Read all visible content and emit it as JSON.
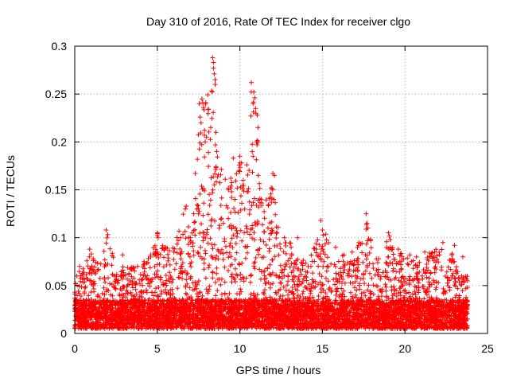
{
  "chart_data": {
    "type": "scatter",
    "title": "Day 310 of 2016, Rate Of TEC Index for receiver clgo",
    "xlabel": "GPS time / hours",
    "ylabel": "ROTI / TECUs",
    "xlim": [
      0,
      25
    ],
    "ylim": [
      0,
      0.3
    ],
    "x_ticks": [
      0,
      5,
      10,
      15,
      20,
      25
    ],
    "x_tick_labels": [
      "0",
      "5",
      "10",
      "15",
      "20",
      "25"
    ],
    "y_ticks": [
      0,
      0.05,
      0.1,
      0.15,
      0.2,
      0.25,
      0.3
    ],
    "y_tick_labels": [
      "0",
      "0.05",
      "0.1",
      "0.15",
      "0.2",
      "0.25",
      "0.3"
    ],
    "grid": true,
    "marker": "+",
    "marker_color": "#ff0000",
    "x_data_range": [
      0,
      23.8
    ],
    "baseline_band": [
      0.005,
      0.035
    ],
    "envelope": [
      [
        0,
        0.06
      ],
      [
        0.5,
        0.07
      ],
      [
        1,
        0.09
      ],
      [
        1.5,
        0.07
      ],
      [
        2,
        0.105
      ],
      [
        2.5,
        0.07
      ],
      [
        3,
        0.07
      ],
      [
        3.5,
        0.07
      ],
      [
        4,
        0.075
      ],
      [
        4.5,
        0.08
      ],
      [
        5,
        0.105
      ],
      [
        5.5,
        0.09
      ],
      [
        6,
        0.09
      ],
      [
        6.5,
        0.13
      ],
      [
        7,
        0.11
      ],
      [
        7.5,
        0.24
      ],
      [
        8,
        0.245
      ],
      [
        8.3,
        0.29
      ],
      [
        8.6,
        0.2
      ],
      [
        9,
        0.16
      ],
      [
        9.5,
        0.17
      ],
      [
        10,
        0.185
      ],
      [
        10.3,
        0.16
      ],
      [
        10.7,
        0.26
      ],
      [
        11,
        0.23
      ],
      [
        11.5,
        0.14
      ],
      [
        12,
        0.165
      ],
      [
        12.5,
        0.09
      ],
      [
        13,
        0.1
      ],
      [
        14,
        0.075
      ],
      [
        15,
        0.12
      ],
      [
        15.5,
        0.09
      ],
      [
        16,
        0.08
      ],
      [
        17,
        0.085
      ],
      [
        17.7,
        0.125
      ],
      [
        18,
        0.09
      ],
      [
        18.5,
        0.07
      ],
      [
        19,
        0.105
      ],
      [
        19.5,
        0.09
      ],
      [
        20,
        0.08
      ],
      [
        20.5,
        0.08
      ],
      [
        21,
        0.08
      ],
      [
        21.5,
        0.085
      ],
      [
        22,
        0.09
      ],
      [
        22.5,
        0.095
      ],
      [
        23,
        0.08
      ],
      [
        23.8,
        0.06
      ]
    ],
    "samples": [
      [
        8.35,
        0.288
      ],
      [
        8.4,
        0.283
      ],
      [
        8.4,
        0.277
      ],
      [
        8.45,
        0.271
      ],
      [
        8.5,
        0.265
      ],
      [
        8.5,
        0.26
      ],
      [
        7.7,
        0.245
      ],
      [
        7.75,
        0.241
      ],
      [
        7.8,
        0.236
      ],
      [
        7.65,
        0.22
      ],
      [
        7.85,
        0.207
      ],
      [
        7.9,
        0.2
      ],
      [
        8.55,
        0.21
      ],
      [
        8.6,
        0.19
      ],
      [
        8.55,
        0.173
      ],
      [
        10.7,
        0.262
      ],
      [
        10.85,
        0.252
      ],
      [
        10.9,
        0.246
      ],
      [
        10.95,
        0.235
      ],
      [
        10.8,
        0.24
      ],
      [
        11.05,
        0.228
      ],
      [
        11.1,
        0.215
      ],
      [
        11.0,
        0.2
      ],
      [
        10.75,
        0.19
      ],
      [
        10.8,
        0.185
      ],
      [
        10.0,
        0.185
      ],
      [
        10.1,
        0.178
      ],
      [
        9.95,
        0.17
      ],
      [
        10.2,
        0.16
      ],
      [
        9.6,
        0.183
      ],
      [
        12.0,
        0.167
      ],
      [
        12.1,
        0.165
      ],
      [
        11.9,
        0.152
      ],
      [
        12.05,
        0.14
      ],
      [
        12.15,
        0.124
      ],
      [
        9.5,
        0.148
      ],
      [
        9.7,
        0.14
      ],
      [
        10.5,
        0.148
      ],
      [
        11.3,
        0.14
      ],
      [
        6.7,
        0.13
      ],
      [
        6.75,
        0.133
      ],
      [
        7.2,
        0.125
      ],
      [
        7.4,
        0.13
      ],
      [
        17.65,
        0.125
      ],
      [
        17.7,
        0.115
      ],
      [
        17.75,
        0.11
      ],
      [
        14.9,
        0.118
      ],
      [
        15.0,
        0.108
      ],
      [
        1.9,
        0.108
      ],
      [
        1.95,
        0.1
      ],
      [
        5.0,
        0.105
      ],
      [
        5.05,
        0.1
      ],
      [
        19.0,
        0.105
      ],
      [
        19.1,
        0.098
      ],
      [
        12.7,
        0.1
      ],
      [
        13.5,
        0.1
      ],
      [
        22.3,
        0.095
      ],
      [
        23.0,
        0.092
      ],
      [
        21.2,
        0.085
      ],
      [
        20.3,
        0.082
      ],
      [
        15.8,
        0.09
      ],
      [
        16.3,
        0.082
      ],
      [
        18.4,
        0.078
      ],
      [
        0.3,
        0.07
      ],
      [
        0.9,
        0.088
      ],
      [
        1.0,
        0.083
      ],
      [
        2.9,
        0.082
      ],
      [
        3.8,
        0.07
      ],
      [
        4.2,
        0.075
      ],
      [
        4.6,
        0.082
      ],
      [
        5.5,
        0.09
      ],
      [
        6.0,
        0.085
      ],
      [
        6.4,
        0.1
      ],
      [
        7.0,
        0.1
      ],
      [
        9.0,
        0.115
      ],
      [
        9.3,
        0.12
      ],
      [
        11.7,
        0.11
      ],
      [
        13.1,
        0.09
      ],
      [
        14.3,
        0.07
      ],
      [
        16.8,
        0.085
      ],
      [
        19.6,
        0.088
      ],
      [
        20.7,
        0.08
      ],
      [
        21.8,
        0.085
      ],
      [
        23.5,
        0.08
      ]
    ]
  }
}
